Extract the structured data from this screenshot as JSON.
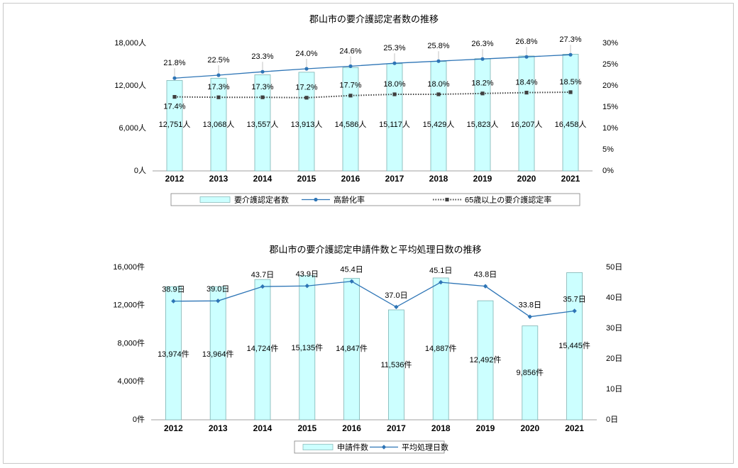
{
  "chart_data": [
    {
      "type": "bar",
      "title": "郡山市の要介護認定者数の推移",
      "categories": [
        "2012",
        "2013",
        "2014",
        "2015",
        "2016",
        "2017",
        "2018",
        "2019",
        "2020",
        "2021"
      ],
      "y_left": {
        "range": [
          0,
          18000
        ],
        "ticks": [
          "0人",
          "6,000人",
          "12,000人",
          "18,000人"
        ],
        "tick_values": [
          0,
          6000,
          12000,
          18000
        ]
      },
      "y_right": {
        "range": [
          0,
          30
        ],
        "ticks": [
          "0%",
          "5%",
          "10%",
          "15%",
          "20%",
          "25%",
          "30%"
        ],
        "tick_values": [
          0,
          5,
          10,
          15,
          20,
          25,
          30
        ]
      },
      "series": [
        {
          "name": "要介護認定者数",
          "kind": "bar",
          "axis": "left",
          "color": "#ccffff",
          "values": [
            12751,
            13068,
            13557,
            13913,
            14586,
            15117,
            15429,
            15823,
            16207,
            16458
          ],
          "labels": [
            "12,751人",
            "13,068人",
            "13,557人",
            "13,913人",
            "14,586人",
            "15,117人",
            "15,429人",
            "15,823人",
            "16,207人",
            "16,458人"
          ]
        },
        {
          "name": "高齢化率",
          "kind": "line",
          "axis": "right",
          "color": "#2e75b6",
          "marker": "circle",
          "values": [
            21.8,
            22.5,
            23.3,
            24.0,
            24.6,
            25.3,
            25.8,
            26.3,
            26.8,
            27.3
          ],
          "labels": [
            "21.8%",
            "22.5%",
            "23.3%",
            "24.0%",
            "24.6%",
            "25.3%",
            "25.8%",
            "26.3%",
            "26.8%",
            "27.3%"
          ]
        },
        {
          "name": "65歳以上の要介護認定率",
          "kind": "line-dotted",
          "axis": "right",
          "color": "#404040",
          "marker": "square",
          "values": [
            17.4,
            17.3,
            17.3,
            17.2,
            17.7,
            18.0,
            18.0,
            18.2,
            18.4,
            18.5
          ],
          "labels": [
            "17.4%",
            "17.3%",
            "17.3%",
            "17.2%",
            "17.7%",
            "18.0%",
            "18.0%",
            "18.2%",
            "18.4%",
            "18.5%"
          ]
        }
      ]
    },
    {
      "type": "bar",
      "title": "郡山市の要介護認定申請件数と平均処理日数の推移",
      "categories": [
        "2012",
        "2013",
        "2014",
        "2015",
        "2016",
        "2017",
        "2018",
        "2019",
        "2020",
        "2021"
      ],
      "y_left": {
        "range": [
          0,
          16000
        ],
        "ticks": [
          "0件",
          "4,000件",
          "8,000件",
          "12,000件",
          "16,000件"
        ],
        "tick_values": [
          0,
          4000,
          8000,
          12000,
          16000
        ]
      },
      "y_right": {
        "range": [
          0,
          50
        ],
        "ticks": [
          "0日",
          "10日",
          "20日",
          "30日",
          "40日",
          "50日"
        ],
        "tick_values": [
          0,
          10,
          20,
          30,
          40,
          50
        ]
      },
      "series": [
        {
          "name": "申請件数",
          "kind": "bar",
          "axis": "left",
          "color": "#ccffff",
          "values": [
            13974,
            13964,
            14724,
            15135,
            14847,
            11536,
            14887,
            12492,
            9856,
            15445
          ],
          "labels": [
            "13,974件",
            "13,964件",
            "14,724件",
            "15,135件",
            "14,847件",
            "11,536件",
            "14,887件",
            "12,492件",
            "9,856件",
            "15,445件"
          ]
        },
        {
          "name": "平均処理日数",
          "kind": "line",
          "axis": "right",
          "color": "#2e75b6",
          "marker": "diamond",
          "values": [
            38.9,
            39.0,
            43.7,
            43.9,
            45.4,
            37.0,
            45.1,
            43.8,
            33.8,
            35.7
          ],
          "labels": [
            "38.9日",
            "39.0日",
            "43.7日",
            "43.9日",
            "45.4日",
            "37.0日",
            "45.1日",
            "43.8日",
            "33.8日",
            "35.7日"
          ]
        }
      ]
    }
  ]
}
